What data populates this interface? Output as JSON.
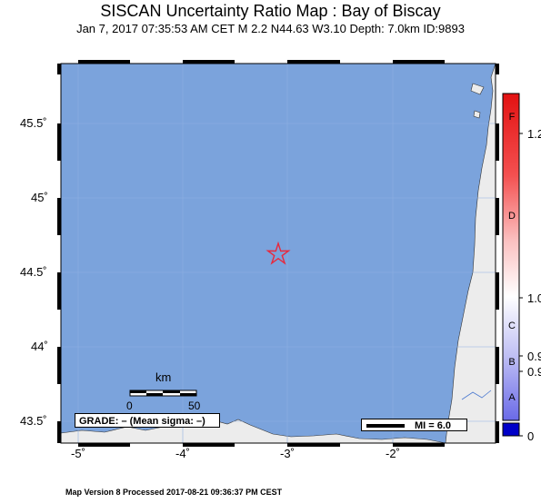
{
  "header": {
    "title": "SISCAN Uncertainty Ratio Map : Bay of Biscay",
    "subtitle": "Jan  7, 2017 07:35:53 AM CET   M 2.2   N44.63 W3.10   Depth: 7.0km   ID:9893"
  },
  "map": {
    "lon_range": [
      -5.2,
      -1.2
    ],
    "lat_range": [
      43.4,
      45.9
    ],
    "epicenter": {
      "lon": -3.1,
      "lat": 44.63,
      "symbol": "star-outline",
      "color": "#e8283c"
    },
    "water_color": "#7ba3dc",
    "land_color": "#ececec",
    "y_ticks": [
      "45.5˚",
      "45˚",
      "44.5˚",
      "44˚",
      "43.5˚"
    ],
    "x_ticks": [
      "-5˚",
      "-4˚",
      "-3˚",
      "-2˚"
    ]
  },
  "scale_bar": {
    "unit_label": "km",
    "start": "0",
    "end": "50"
  },
  "grade_box": {
    "text": "GRADE: – (Mean sigma: –)"
  },
  "mi_legend": {
    "text": "MI = 6.0"
  },
  "colorbar": {
    "letters": [
      "F",
      "D",
      "C",
      "B",
      "A"
    ],
    "values": [
      "1.2",
      "1.0",
      "0.9",
      "0.9",
      "0"
    ],
    "top_color": "#e01010",
    "bottom_color": "#0000c8"
  },
  "footer": {
    "text": "Map Version 8 Processed 2017-08-21 09:36:37 PM CEST"
  }
}
